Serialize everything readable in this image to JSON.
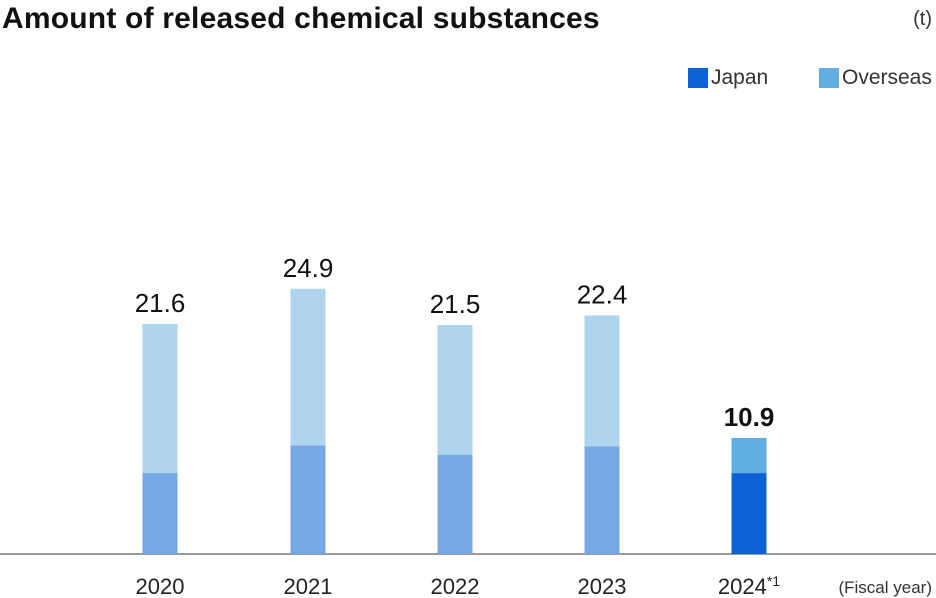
{
  "header": {
    "title": "Amount of released chemical substances",
    "unit": "(t)"
  },
  "legend": {
    "japan_label": "Japan",
    "overseas_label": "Overseas"
  },
  "x_axis_note": "(Fiscal year)",
  "chart_data": {
    "type": "bar",
    "stacked": true,
    "title": "Amount of released chemical substances",
    "unit": "t",
    "categories": [
      "2020",
      "2021",
      "2022",
      "2023",
      "2024*1"
    ],
    "series": [
      {
        "name": "Japan",
        "values": [
          7.6,
          10.2,
          9.3,
          10.1,
          7.6
        ]
      },
      {
        "name": "Overseas",
        "values": [
          14.0,
          14.7,
          12.2,
          12.3,
          3.3
        ]
      }
    ],
    "totals": [
      "21.6",
      "24.9",
      "21.5",
      "22.4",
      "10.9"
    ],
    "ylim": [
      0,
      26
    ],
    "grid": false,
    "legend_position": "top-right",
    "colors": {
      "japan": "#76a8e4",
      "overseas": "#aed4ee",
      "japan_highlight": "#0d63d6",
      "overseas_highlight": "#62aee3",
      "axis": "#333333"
    },
    "highlight_index": 4
  }
}
